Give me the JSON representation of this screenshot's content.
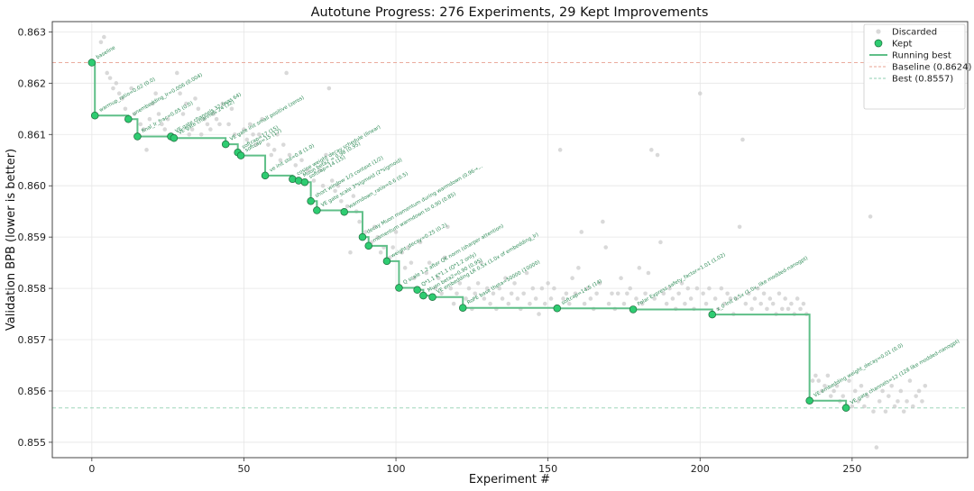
{
  "chart_data": {
    "type": "scatter",
    "title": "Autotune Progress: 276 Experiments, 29 Kept Improvements",
    "xlabel": "Experiment #",
    "ylabel": "Validation BPB (lower is better)",
    "xlim": [
      -13,
      288
    ],
    "ylim": [
      0.8547,
      0.8632
    ],
    "xticks": [
      0,
      50,
      100,
      150,
      200,
      250
    ],
    "yticks": [
      0.855,
      0.856,
      0.857,
      0.858,
      0.859,
      0.86,
      0.861,
      0.862,
      0.863
    ],
    "grid": true,
    "legend_position": "top-right",
    "legend": {
      "discarded": "Discarded",
      "kept": "Kept",
      "running": "Running best",
      "baseline": "Baseline (0.8624)",
      "best": "Best (0.8557)"
    },
    "baseline": 0.8624,
    "best": 0.85567,
    "colors": {
      "kept": "#2ecc71",
      "kept_edge": "#1e6b3c",
      "running": "#5fbf88",
      "discarded": "#cccccc",
      "baseline": "#e8a090",
      "best": "#8fcfb0",
      "annotation": "#2e8b57"
    },
    "kept": [
      {
        "x": 0,
        "y": 0.8624,
        "label": "baseline"
      },
      {
        "x": 1,
        "y": 0.86137,
        "label": "warmup_ratio=0.02 (0.0)"
      },
      {
        "x": 12,
        "y": 0.8613,
        "label": "unembedding_lr=0.006 (0.004)"
      },
      {
        "x": 15,
        "y": 0.86096,
        "label": "final_lr_frac=0.05 (0.0)"
      },
      {
        "x": 26,
        "y": 0.86096,
        "label": "VE gate channels 32 (was 64)"
      },
      {
        "x": 27,
        "y": 0.86093,
        "label": "VE gate channels 24 (32)"
      },
      {
        "x": 44,
        "y": 0.86081,
        "label": "VE gate init small positive (zeros)"
      },
      {
        "x": 48,
        "y": 0.86065,
        "label": "softcap=17 (15)"
      },
      {
        "x": 49,
        "y": 0.86059,
        "label": "softcap=15 (17)"
      },
      {
        "x": 57,
        "y": 0.8602,
        "label": "ve init std=0.8 (1.0)"
      },
      {
        "x": 66,
        "y": 0.86013,
        "label": "cosine weight decay schedule (linear)"
      },
      {
        "x": 68,
        "y": 0.8601,
        "label": "Muon beta2 = 0.98 (0.95)"
      },
      {
        "x": 70,
        "y": 0.86007,
        "label": "softcap=14 (15)"
      },
      {
        "x": 72,
        "y": 0.8597,
        "label": "short window 1/3 context (1/2)"
      },
      {
        "x": 74,
        "y": 0.85952,
        "label": "VE gate scale 3*sigmoid (2*sigmoid)"
      },
      {
        "x": 83,
        "y": 0.85949,
        "label": "warmdown_ratio=0.6 (0.5)"
      },
      {
        "x": 89,
        "y": 0.859,
        "label": "decay Muon momentum during warmdown (0.96→..."
      },
      {
        "x": 91,
        "y": 0.85883,
        "label": "momentum warmdown to 0.90 (0.85)"
      },
      {
        "x": 97,
        "y": 0.85853,
        "label": "weight_decay=0.25 (0.2)"
      },
      {
        "x": 101,
        "y": 0.85801,
        "label": "Q scale 1.2 after QK norm (sharper attention)"
      },
      {
        "x": 107,
        "y": 0.85797,
        "label": "Q*1.1 K*1.1 (Q*1.2 only)"
      },
      {
        "x": 109,
        "y": 0.85786,
        "label": "Muon beta2=0.90 (0.95)"
      },
      {
        "x": 112,
        "y": 0.85783,
        "label": "VE embedding LR 0.5x (1.0x of embedding_lr)"
      },
      {
        "x": 122,
        "y": 0.85762,
        "label": "RoPE base theta=50000 (10000)"
      },
      {
        "x": 153,
        "y": 0.85761,
        "label": "softcap=14.5 (14)"
      },
      {
        "x": 178,
        "y": 0.85759,
        "label": "Polar Express safety_factor=1.01 (1.02)"
      },
      {
        "x": 204,
        "y": 0.85749,
        "label": "x_0 init 0.5x (1.0x, like modded-nanogpt)"
      },
      {
        "x": 236,
        "y": 0.85581,
        "label": "VE embedding weight_decay=0.01 (0.0)"
      },
      {
        "x": 248,
        "y": 0.85567,
        "label": "VE gate channels=12 (128 like modded-nanogpt)"
      }
    ],
    "discarded": [
      [
        3,
        0.8628
      ],
      [
        4,
        0.8629
      ],
      [
        5,
        0.8622
      ],
      [
        6,
        0.8621
      ],
      [
        7,
        0.8619
      ],
      [
        8,
        0.862
      ],
      [
        9,
        0.8618
      ],
      [
        10,
        0.8617
      ],
      [
        11,
        0.8615
      ],
      [
        13,
        0.8619
      ],
      [
        14,
        0.8614
      ],
      [
        16,
        0.8612
      ],
      [
        17,
        0.8611
      ],
      [
        18,
        0.8607
      ],
      [
        19,
        0.8613
      ],
      [
        20,
        0.8616
      ],
      [
        21,
        0.8618
      ],
      [
        22,
        0.8614
      ],
      [
        23,
        0.8612
      ],
      [
        24,
        0.8611
      ],
      [
        25,
        0.8613
      ],
      [
        28,
        0.8622
      ],
      [
        29,
        0.8618
      ],
      [
        30,
        0.8614
      ],
      [
        31,
        0.8616
      ],
      [
        32,
        0.861
      ],
      [
        33,
        0.8611
      ],
      [
        34,
        0.8617
      ],
      [
        35,
        0.8615
      ],
      [
        36,
        0.861
      ],
      [
        37,
        0.8613
      ],
      [
        38,
        0.8612
      ],
      [
        39,
        0.8611
      ],
      [
        40,
        0.8614
      ],
      [
        41,
        0.8613
      ],
      [
        42,
        0.8612
      ],
      [
        43,
        0.8616
      ],
      [
        45,
        0.8612
      ],
      [
        46,
        0.8615
      ],
      [
        47,
        0.861
      ],
      [
        50,
        0.8611
      ],
      [
        51,
        0.8609
      ],
      [
        52,
        0.8612
      ],
      [
        53,
        0.861
      ],
      [
        54,
        0.8608
      ],
      [
        55,
        0.861
      ],
      [
        56,
        0.8613
      ],
      [
        58,
        0.8608
      ],
      [
        59,
        0.8606
      ],
      [
        60,
        0.8607
      ],
      [
        61,
        0.861
      ],
      [
        62,
        0.8605
      ],
      [
        63,
        0.8608
      ],
      [
        64,
        0.8622
      ],
      [
        65,
        0.8606
      ],
      [
        67,
        0.8604
      ],
      [
        69,
        0.8605
      ],
      [
        71,
        0.8603
      ],
      [
        73,
        0.8601
      ],
      [
        75,
        0.8603
      ],
      [
        76,
        0.86
      ],
      [
        77,
        0.8606
      ],
      [
        78,
        0.8619
      ],
      [
        79,
        0.8601
      ],
      [
        80,
        0.8599
      ],
      [
        81,
        0.86
      ],
      [
        82,
        0.8597
      ],
      [
        84,
        0.8596
      ],
      [
        85,
        0.8587
      ],
      [
        86,
        0.8598
      ],
      [
        87,
        0.8595
      ],
      [
        88,
        0.8593
      ],
      [
        90,
        0.8591
      ],
      [
        92,
        0.8589
      ],
      [
        93,
        0.8592
      ],
      [
        94,
        0.859
      ],
      [
        95,
        0.8587
      ],
      [
        96,
        0.8588
      ],
      [
        98,
        0.8586
      ],
      [
        99,
        0.8588
      ],
      [
        100,
        0.8591
      ],
      [
        102,
        0.8587
      ],
      [
        103,
        0.8584
      ],
      [
        104,
        0.8588
      ],
      [
        105,
        0.8585
      ],
      [
        106,
        0.8582
      ],
      [
        108,
        0.8589
      ],
      [
        110,
        0.8583
      ],
      [
        111,
        0.8585
      ],
      [
        113,
        0.858
      ],
      [
        114,
        0.8582
      ],
      [
        115,
        0.8579
      ],
      [
        116,
        0.8586
      ],
      [
        117,
        0.8592
      ],
      [
        118,
        0.858
      ],
      [
        119,
        0.8577
      ],
      [
        120,
        0.8579
      ],
      [
        121,
        0.8581
      ],
      [
        123,
        0.8578
      ],
      [
        124,
        0.858
      ],
      [
        125,
        0.8576
      ],
      [
        126,
        0.8579
      ],
      [
        127,
        0.8581
      ],
      [
        128,
        0.8585
      ],
      [
        129,
        0.8578
      ],
      [
        130,
        0.858
      ],
      [
        131,
        0.8577
      ],
      [
        132,
        0.8579
      ],
      [
        133,
        0.8576
      ],
      [
        134,
        0.858
      ],
      [
        135,
        0.8578
      ],
      [
        136,
        0.8582
      ],
      [
        137,
        0.8577
      ],
      [
        138,
        0.8579
      ],
      [
        139,
        0.8581
      ],
      [
        140,
        0.8578
      ],
      [
        141,
        0.8576
      ],
      [
        142,
        0.8579
      ],
      [
        143,
        0.8583
      ],
      [
        144,
        0.8577
      ],
      [
        145,
        0.858
      ],
      [
        146,
        0.8578
      ],
      [
        147,
        0.8575
      ],
      [
        148,
        0.858
      ],
      [
        149,
        0.8577
      ],
      [
        150,
        0.8581
      ],
      [
        151,
        0.8578
      ],
      [
        152,
        0.858
      ],
      [
        154,
        0.8607
      ],
      [
        155,
        0.8578
      ],
      [
        156,
        0.8579
      ],
      [
        157,
        0.8577
      ],
      [
        158,
        0.8582
      ],
      [
        159,
        0.8579
      ],
      [
        160,
        0.8584
      ],
      [
        161,
        0.8591
      ],
      [
        162,
        0.8577
      ],
      [
        163,
        0.858
      ],
      [
        164,
        0.8578
      ],
      [
        165,
        0.8576
      ],
      [
        166,
        0.8579
      ],
      [
        167,
        0.8581
      ],
      [
        168,
        0.8593
      ],
      [
        169,
        0.8588
      ],
      [
        170,
        0.8577
      ],
      [
        171,
        0.8579
      ],
      [
        172,
        0.8576
      ],
      [
        173,
        0.8579
      ],
      [
        174,
        0.8582
      ],
      [
        175,
        0.8577
      ],
      [
        176,
        0.8579
      ],
      [
        177,
        0.858
      ],
      [
        179,
        0.8578
      ],
      [
        180,
        0.8584
      ],
      [
        181,
        0.8577
      ],
      [
        182,
        0.8579
      ],
      [
        183,
        0.8583
      ],
      [
        184,
        0.8607
      ],
      [
        185,
        0.8578
      ],
      [
        186,
        0.8606
      ],
      [
        187,
        0.8589
      ],
      [
        188,
        0.8579
      ],
      [
        189,
        0.8577
      ],
      [
        190,
        0.858
      ],
      [
        191,
        0.8578
      ],
      [
        192,
        0.8576
      ],
      [
        193,
        0.8579
      ],
      [
        194,
        0.8581
      ],
      [
        195,
        0.8577
      ],
      [
        196,
        0.858
      ],
      [
        197,
        0.8578
      ],
      [
        198,
        0.8576
      ],
      [
        199,
        0.858
      ],
      [
        200,
        0.8618
      ],
      [
        201,
        0.8579
      ],
      [
        202,
        0.8577
      ],
      [
        203,
        0.858
      ],
      [
        205,
        0.8578
      ],
      [
        206,
        0.8576
      ],
      [
        207,
        0.858
      ],
      [
        208,
        0.8577
      ],
      [
        209,
        0.8579
      ],
      [
        210,
        0.8578
      ],
      [
        211,
        0.8575
      ],
      [
        212,
        0.8578
      ],
      [
        213,
        0.8592
      ],
      [
        214,
        0.8609
      ],
      [
        215,
        0.8577
      ],
      [
        216,
        0.8579
      ],
      [
        217,
        0.8576
      ],
      [
        218,
        0.8578
      ],
      [
        219,
        0.858
      ],
      [
        220,
        0.8577
      ],
      [
        221,
        0.8579
      ],
      [
        222,
        0.8576
      ],
      [
        223,
        0.8578
      ],
      [
        224,
        0.8577
      ],
      [
        225,
        0.8575
      ],
      [
        226,
        0.8579
      ],
      [
        227,
        0.8576
      ],
      [
        228,
        0.8578
      ],
      [
        229,
        0.8576
      ],
      [
        230,
        0.8577
      ],
      [
        231,
        0.8575
      ],
      [
        232,
        0.8578
      ],
      [
        233,
        0.8576
      ],
      [
        234,
        0.8577
      ],
      [
        235,
        0.8575
      ],
      [
        237,
        0.8562
      ],
      [
        238,
        0.8563
      ],
      [
        239,
        0.8562
      ],
      [
        240,
        0.856
      ],
      [
        241,
        0.8561
      ],
      [
        242,
        0.8563
      ],
      [
        243,
        0.8559
      ],
      [
        244,
        0.856
      ],
      [
        245,
        0.8561
      ],
      [
        246,
        0.8558
      ],
      [
        247,
        0.8559
      ],
      [
        249,
        0.8562
      ],
      [
        250,
        0.8557
      ],
      [
        251,
        0.856
      ],
      [
        252,
        0.8558
      ],
      [
        253,
        0.8561
      ],
      [
        254,
        0.8557
      ],
      [
        255,
        0.8559
      ],
      [
        256,
        0.8594
      ],
      [
        257,
        0.8556
      ],
      [
        258,
        0.8549
      ],
      [
        259,
        0.8558
      ],
      [
        260,
        0.856
      ],
      [
        261,
        0.8556
      ],
      [
        262,
        0.8559
      ],
      [
        263,
        0.8561
      ],
      [
        264,
        0.8557
      ],
      [
        265,
        0.8558
      ],
      [
        266,
        0.856
      ],
      [
        267,
        0.8556
      ],
      [
        268,
        0.8558
      ],
      [
        269,
        0.8562
      ],
      [
        270,
        0.8557
      ],
      [
        271,
        0.8559
      ],
      [
        272,
        0.856
      ],
      [
        273,
        0.8558
      ],
      [
        274,
        0.8561
      ]
    ]
  }
}
